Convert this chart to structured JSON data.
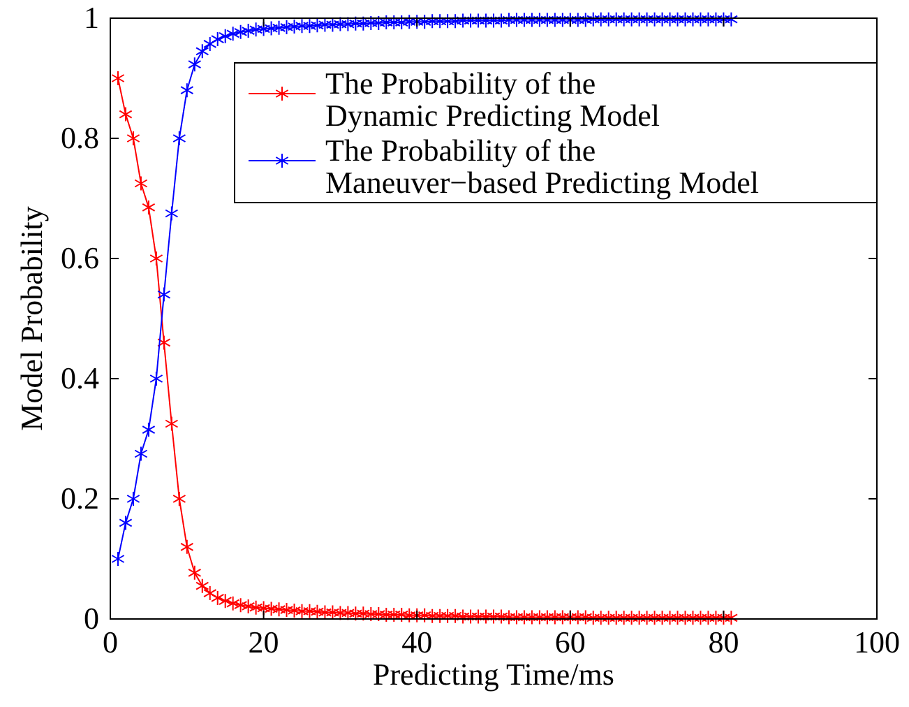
{
  "chart_data": {
    "type": "line",
    "xlabel": "Predicting Time/ms",
    "ylabel": "Model Probability",
    "x": [
      1,
      2,
      3,
      4,
      5,
      6,
      7,
      8,
      9,
      10,
      11,
      12,
      13,
      14,
      15,
      16,
      17,
      18,
      19,
      20,
      21,
      22,
      23,
      24,
      25,
      26,
      27,
      28,
      29,
      30,
      31,
      32,
      33,
      34,
      35,
      36,
      37,
      38,
      39,
      40,
      41,
      42,
      43,
      44,
      45,
      46,
      47,
      48,
      49,
      50,
      51,
      52,
      53,
      54,
      55,
      56,
      57,
      58,
      59,
      60,
      61,
      62,
      63,
      64,
      65,
      66,
      67,
      68,
      69,
      70,
      71,
      72,
      73,
      74,
      75,
      76,
      77,
      78,
      79,
      80,
      81
    ],
    "series": [
      {
        "name": "The Probability of the\nDynamic Predicting Model",
        "color": "#ff0000",
        "values": [
          0.9,
          0.84,
          0.8,
          0.725,
          0.685,
          0.6,
          0.46,
          0.325,
          0.2,
          0.12,
          0.077,
          0.055,
          0.043,
          0.035,
          0.03,
          0.026,
          0.023,
          0.021,
          0.019,
          0.018,
          0.017,
          0.016,
          0.015,
          0.014,
          0.013,
          0.013,
          0.012,
          0.011,
          0.011,
          0.01,
          0.01,
          0.009,
          0.009,
          0.008,
          0.008,
          0.007,
          0.007,
          0.007,
          0.006,
          0.006,
          0.006,
          0.005,
          0.005,
          0.005,
          0.005,
          0.004,
          0.004,
          0.004,
          0.004,
          0.004,
          0.004,
          0.003,
          0.003,
          0.003,
          0.003,
          0.003,
          0.003,
          0.003,
          0.003,
          0.003,
          0.003,
          0.003,
          0.002,
          0.002,
          0.002,
          0.002,
          0.002,
          0.002,
          0.002,
          0.002,
          0.002,
          0.002,
          0.002,
          0.002,
          0.002,
          0.002,
          0.002,
          0.002,
          0.002,
          0.002,
          0.002
        ]
      },
      {
        "name": "The Probability of the\nManeuver−based Predicting Model",
        "color": "#0000ff",
        "values": [
          0.1,
          0.16,
          0.2,
          0.275,
          0.315,
          0.4,
          0.54,
          0.675,
          0.8,
          0.88,
          0.923,
          0.945,
          0.957,
          0.965,
          0.97,
          0.974,
          0.977,
          0.979,
          0.981,
          0.982,
          0.983,
          0.984,
          0.985,
          0.986,
          0.987,
          0.987,
          0.988,
          0.989,
          0.989,
          0.99,
          0.99,
          0.991,
          0.991,
          0.992,
          0.992,
          0.993,
          0.993,
          0.993,
          0.994,
          0.994,
          0.994,
          0.995,
          0.995,
          0.995,
          0.995,
          0.996,
          0.996,
          0.996,
          0.996,
          0.996,
          0.996,
          0.997,
          0.997,
          0.997,
          0.997,
          0.997,
          0.997,
          0.997,
          0.997,
          0.997,
          0.997,
          0.997,
          0.998,
          0.998,
          0.998,
          0.998,
          0.998,
          0.998,
          0.998,
          0.998,
          0.998,
          0.998,
          0.998,
          0.998,
          0.998,
          0.998,
          0.998,
          0.998,
          0.998,
          0.998,
          0.998
        ]
      }
    ],
    "xlim": [
      0,
      100
    ],
    "xticks": [
      0,
      20,
      40,
      60,
      80,
      100
    ],
    "ylim": [
      0,
      1
    ],
    "yticks": [
      0,
      0.2,
      0.4,
      0.6,
      0.8,
      1
    ],
    "grid": false,
    "legend": "top right",
    "marker": "cross",
    "line_style": "solid"
  }
}
